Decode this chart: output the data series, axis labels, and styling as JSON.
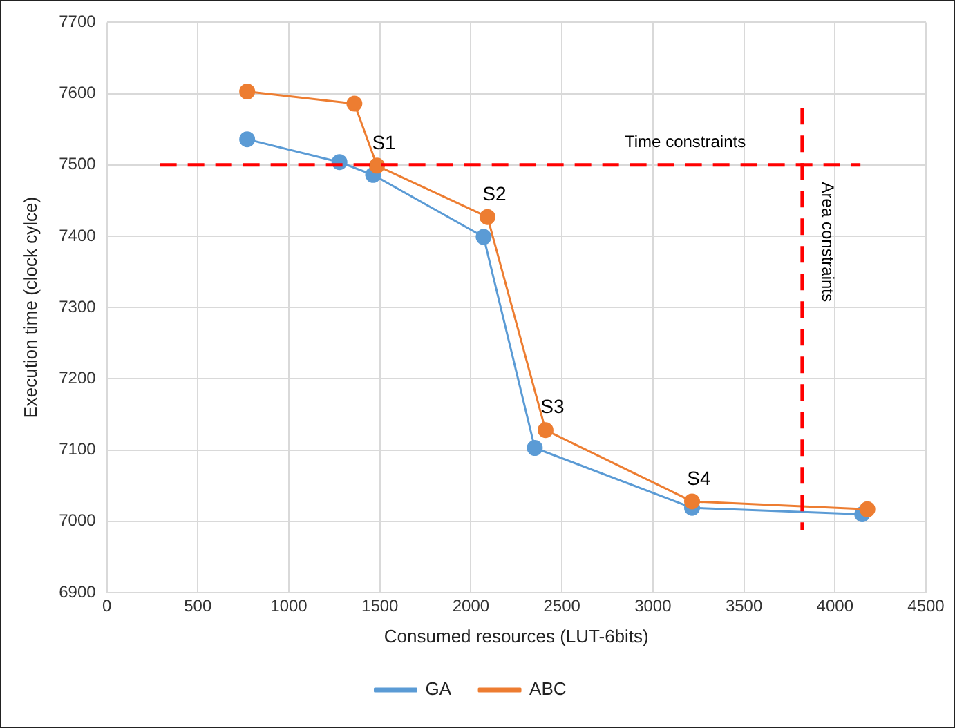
{
  "chart_data": {
    "type": "line",
    "xlabel": "Consumed resources (LUT-6bits)",
    "ylabel": "Execution time (clock cylce)",
    "xlim": [
      0,
      4500
    ],
    "xticks": [
      0,
      500,
      1000,
      1500,
      2000,
      2500,
      3000,
      3500,
      4000,
      4500
    ],
    "ylim": [
      6900,
      7700
    ],
    "yticks": [
      6900,
      7000,
      7100,
      7200,
      7300,
      7400,
      7500,
      7600,
      7700
    ],
    "series": [
      {
        "name": "GA",
        "color": "#5b9bd5",
        "x": [
          771,
          1278,
          1463,
          2070,
          2351,
          3215,
          4150
        ],
        "values": [
          7536,
          7504,
          7486,
          7399,
          7103,
          7019,
          7010
        ]
      },
      {
        "name": "ABC",
        "color": "#ed7d31",
        "x": [
          771,
          1360,
          1484,
          2091,
          2410,
          3215,
          4178
        ],
        "values": [
          7603,
          7586,
          7499,
          7427,
          7128,
          7028,
          7017
        ]
      }
    ],
    "ref_lines": [
      {
        "axis": "y",
        "value": 7500,
        "label": "Time constraints",
        "color": "#ff0000",
        "line_style": "dashed"
      },
      {
        "axis": "x",
        "value": 3820,
        "label": "Area constraints",
        "color": "#ff0000",
        "line_style": "dashed"
      }
    ],
    "annotations": [
      {
        "text": "S1",
        "x": 1484,
        "y": 7499
      },
      {
        "text": "S2",
        "x": 2091,
        "y": 7427
      },
      {
        "text": "S3",
        "x": 2410,
        "y": 7128
      },
      {
        "text": "S4",
        "x": 3215,
        "y": 7028
      }
    ],
    "grid": true,
    "legend": "bottom",
    "marker": "circle",
    "line_style": "solid"
  }
}
